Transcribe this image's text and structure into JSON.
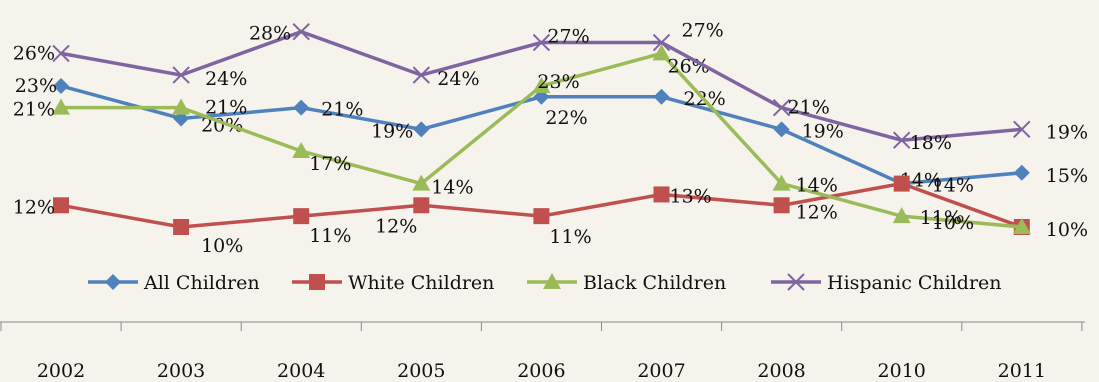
{
  "chart_data": {
    "type": "line",
    "categories": [
      "2002",
      "2003",
      "2004",
      "2005",
      "2006",
      "2007",
      "2008",
      "2010",
      "2011"
    ],
    "series": [
      {
        "name": "All Children",
        "values": [
          23,
          20,
          21,
          19,
          22,
          22,
          19,
          14,
          15
        ],
        "color": "#4f81bd",
        "marker": "diamond"
      },
      {
        "name": "White Children",
        "values": [
          12,
          10,
          11,
          12,
          11,
          13,
          12,
          14,
          10
        ],
        "color": "#c0504d",
        "marker": "square"
      },
      {
        "name": "Black Children",
        "values": [
          21,
          21,
          17,
          14,
          23,
          26,
          14,
          11,
          10
        ],
        "color": "#9bbb59",
        "marker": "triangle"
      },
      {
        "name": "Hispanic Children",
        "values": [
          26,
          24,
          28,
          24,
          27,
          27,
          21,
          18,
          19
        ],
        "color": "#8064a2",
        "marker": "x"
      }
    ],
    "data_label_suffix": "%",
    "legend_position": "bottom",
    "grid": false
  }
}
